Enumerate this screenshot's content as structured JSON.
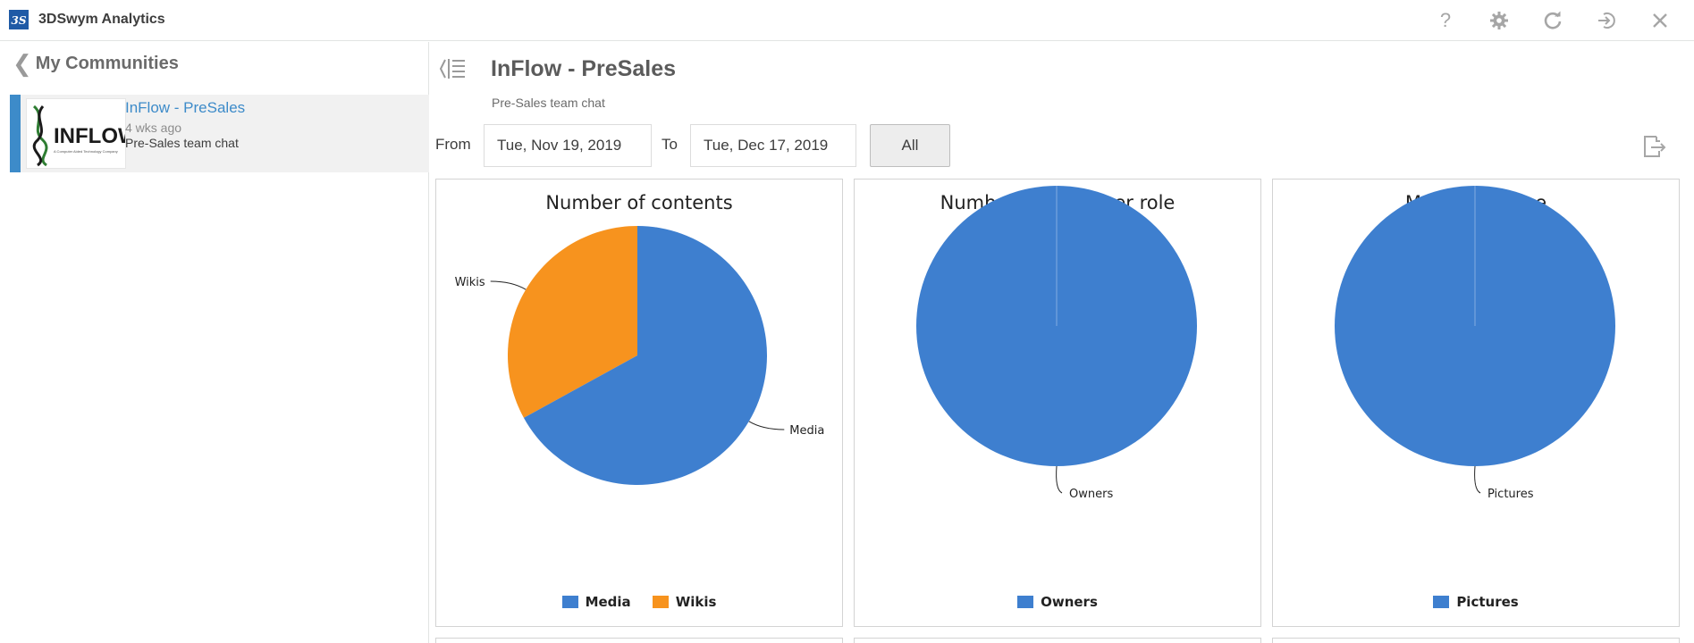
{
  "app": {
    "title": "3DSwym Analytics",
    "toolbar_icons": [
      "help-icon",
      "settings-icon",
      "refresh-icon",
      "signout-icon",
      "close-icon"
    ],
    "toolbar_labels": {
      "help": "?"
    }
  },
  "sidebar": {
    "back_label": "My Communities",
    "communities": [
      {
        "name": "InFlow - PreSales",
        "age": "4 wks ago",
        "description": "Pre-Sales team chat",
        "logo_text": "INFLOW",
        "logo_tagline": "A Computer Aided Technology Company"
      }
    ]
  },
  "main": {
    "title": "InFlow - PreSales",
    "subtitle": "Pre-Sales team chat",
    "filter": {
      "from_label": "From",
      "from_value": "Tue, Nov 19, 2019",
      "to_label": "To",
      "to_value": "Tue, Dec 17, 2019",
      "all_label": "All"
    }
  },
  "colors": {
    "accent": "#3d8bc9",
    "blue": "#3e7fcf",
    "orange": "#f7931e"
  },
  "chart_data": [
    {
      "type": "pie",
      "title": "Number of contents",
      "series": [
        {
          "name": "Media",
          "value": 67,
          "color": "#3e7fcf"
        },
        {
          "name": "Wikis",
          "value": 33,
          "color": "#f7931e"
        }
      ],
      "legend": "bottom"
    },
    {
      "type": "pie",
      "title": "Number of users per role",
      "series": [
        {
          "name": "Owners",
          "value": 100,
          "color": "#3e7fcf"
        }
      ],
      "legend": "bottom"
    },
    {
      "type": "pie",
      "title": "Media per type",
      "series": [
        {
          "name": "Pictures",
          "value": 100,
          "color": "#3e7fcf"
        }
      ],
      "legend": "bottom"
    }
  ]
}
